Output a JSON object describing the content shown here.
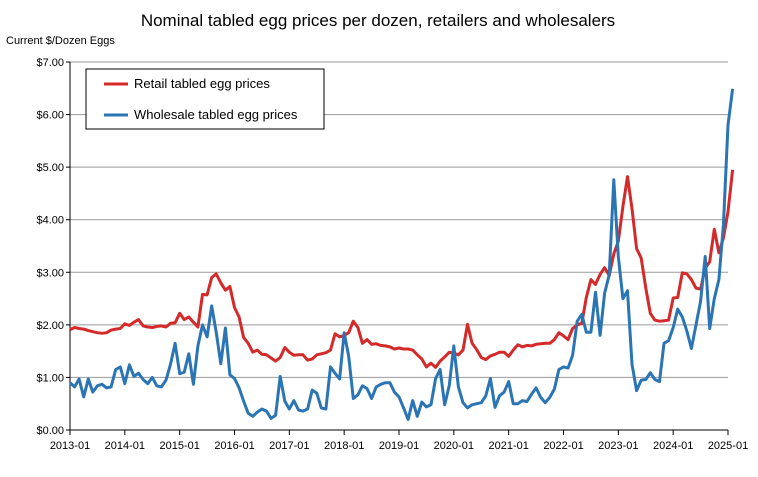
{
  "chart_data": {
    "type": "line",
    "title": "Nominal tabled egg prices per dozen, retailers and wholesalers",
    "ylabel": "Current $/Dozen Eggs",
    "xlabel": "",
    "ylim": [
      0,
      7
    ],
    "y_ticks": [
      "$0.00",
      "$1.00",
      "$2.00",
      "$3.00",
      "$4.00",
      "$5.00",
      "$6.00",
      "$7.00"
    ],
    "x_ticks": [
      "2013-01",
      "2014-01",
      "2015-01",
      "2016-01",
      "2017-01",
      "2018-01",
      "2019-01",
      "2020-01",
      "2021-01",
      "2022-01",
      "2023-01",
      "2024-01",
      "2025-01"
    ],
    "grid": "horizontal",
    "legend_position": "top-left",
    "series": [
      {
        "name": "Retail tabled egg prices",
        "color": "#d42a2a",
        "values": [
          1.91,
          1.95,
          1.93,
          1.92,
          1.89,
          1.87,
          1.85,
          1.84,
          1.85,
          1.9,
          1.92,
          1.93,
          2.02,
          1.99,
          2.05,
          2.1,
          1.98,
          1.96,
          1.95,
          1.97,
          1.98,
          1.96,
          2.03,
          2.04,
          2.22,
          2.1,
          2.15,
          2.05,
          1.96,
          2.58,
          2.57,
          2.9,
          2.97,
          2.8,
          2.66,
          2.73,
          2.33,
          2.15,
          1.76,
          1.65,
          1.48,
          1.52,
          1.44,
          1.43,
          1.37,
          1.31,
          1.38,
          1.57,
          1.48,
          1.42,
          1.43,
          1.43,
          1.33,
          1.35,
          1.43,
          1.45,
          1.47,
          1.52,
          1.83,
          1.77,
          1.8,
          1.85,
          2.07,
          1.95,
          1.65,
          1.72,
          1.63,
          1.64,
          1.61,
          1.6,
          1.58,
          1.54,
          1.56,
          1.54,
          1.54,
          1.52,
          1.43,
          1.35,
          1.2,
          1.27,
          1.19,
          1.31,
          1.39,
          1.48,
          1.46,
          1.43,
          1.52,
          2.01,
          1.65,
          1.53,
          1.38,
          1.34,
          1.41,
          1.44,
          1.48,
          1.48,
          1.4,
          1.52,
          1.62,
          1.58,
          1.61,
          1.6,
          1.63,
          1.64,
          1.65,
          1.65,
          1.72,
          1.85,
          1.79,
          1.72,
          1.93,
          2.0,
          2.03,
          2.52,
          2.86,
          2.77,
          2.96,
          3.09,
          2.94,
          3.35,
          3.59,
          4.25,
          4.82,
          4.21,
          3.45,
          3.27,
          2.7,
          2.22,
          2.09,
          2.07,
          2.08,
          2.09,
          2.51,
          2.52,
          2.99,
          2.97,
          2.86,
          2.7,
          2.68,
          3.08,
          3.2,
          3.82,
          3.37,
          3.65,
          4.15,
          4.95
        ]
      },
      {
        "name": "Wholesale tabled egg prices",
        "color": "#2b75b5",
        "values": [
          0.9,
          0.82,
          0.97,
          0.63,
          0.97,
          0.72,
          0.84,
          0.87,
          0.8,
          0.82,
          1.15,
          1.2,
          0.88,
          1.24,
          1.02,
          1.08,
          0.96,
          0.88,
          1.0,
          0.84,
          0.82,
          0.95,
          1.25,
          1.65,
          1.07,
          1.1,
          1.45,
          0.87,
          1.6,
          2.0,
          1.77,
          2.36,
          1.86,
          1.26,
          1.94,
          1.05,
          0.98,
          0.8,
          0.55,
          0.32,
          0.26,
          0.34,
          0.4,
          0.36,
          0.22,
          0.28,
          1.02,
          0.55,
          0.4,
          0.56,
          0.38,
          0.36,
          0.4,
          0.76,
          0.7,
          0.42,
          0.4,
          1.2,
          1.08,
          0.97,
          1.85,
          1.4,
          0.6,
          0.67,
          0.84,
          0.79,
          0.6,
          0.82,
          0.87,
          0.9,
          0.9,
          0.72,
          0.63,
          0.42,
          0.2,
          0.56,
          0.26,
          0.53,
          0.44,
          0.48,
          0.98,
          1.15,
          0.48,
          0.85,
          1.6,
          0.82,
          0.52,
          0.42,
          0.48,
          0.5,
          0.52,
          0.65,
          0.98,
          0.43,
          0.65,
          0.72,
          0.92,
          0.5,
          0.5,
          0.56,
          0.54,
          0.68,
          0.8,
          0.62,
          0.52,
          0.62,
          0.78,
          1.15,
          1.2,
          1.18,
          1.42,
          2.07,
          2.2,
          1.86,
          1.86,
          2.62,
          1.8,
          2.6,
          2.95,
          4.76,
          3.3,
          2.5,
          2.65,
          1.25,
          0.75,
          0.95,
          0.96,
          1.09,
          0.96,
          0.92,
          1.65,
          1.7,
          1.95,
          2.3,
          2.15,
          1.88,
          1.55,
          2.0,
          2.45,
          3.3,
          1.93,
          2.5,
          2.86,
          3.9,
          5.8,
          6.49
        ]
      }
    ]
  }
}
